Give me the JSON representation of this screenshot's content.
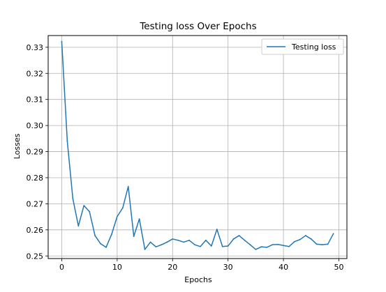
{
  "chart_data": {
    "type": "line",
    "title": "Testing loss Over Epochs",
    "xlabel": "Epochs",
    "ylabel": "Losses",
    "xlim": [
      -2.45,
      51.45
    ],
    "ylim": [
      0.249,
      0.3345
    ],
    "xticks": [
      0,
      10,
      20,
      30,
      40,
      50
    ],
    "xtick_labels": [
      "0",
      "10",
      "20",
      "30",
      "40",
      "50"
    ],
    "yticks": [
      0.25,
      0.26,
      0.27,
      0.28,
      0.29,
      0.3,
      0.31,
      0.32,
      0.33
    ],
    "ytick_labels": [
      "0.25",
      "0.26",
      "0.27",
      "0.28",
      "0.29",
      "0.30",
      "0.31",
      "0.32",
      "0.33"
    ],
    "grid": true,
    "legend_position": "top-right",
    "series": [
      {
        "name": "Testing loss",
        "color": "#1f77b4",
        "x": [
          0,
          1,
          2,
          3,
          4,
          5,
          6,
          7,
          8,
          9,
          10,
          11,
          12,
          13,
          14,
          15,
          16,
          17,
          18,
          19,
          20,
          21,
          22,
          23,
          24,
          25,
          26,
          27,
          28,
          29,
          30,
          31,
          32,
          33,
          34,
          35,
          36,
          37,
          38,
          39,
          40,
          41,
          42,
          43,
          44,
          45,
          46,
          47,
          48,
          49
        ],
        "values": [
          0.3322,
          0.294,
          0.272,
          0.2615,
          0.2693,
          0.267,
          0.2578,
          0.2547,
          0.2533,
          0.2583,
          0.2651,
          0.2684,
          0.2766,
          0.2575,
          0.2642,
          0.2525,
          0.2553,
          0.2535,
          0.2543,
          0.2553,
          0.2565,
          0.256,
          0.2553,
          0.256,
          0.2543,
          0.2536,
          0.256,
          0.2538,
          0.2602,
          0.2536,
          0.2538,
          0.2565,
          0.2578,
          0.256,
          0.2543,
          0.2525,
          0.2535,
          0.2533,
          0.2543,
          0.2544,
          0.254,
          0.2536,
          0.2555,
          0.2563,
          0.2578,
          0.2565,
          0.2545,
          0.2543,
          0.2545,
          0.2585
        ]
      }
    ]
  }
}
